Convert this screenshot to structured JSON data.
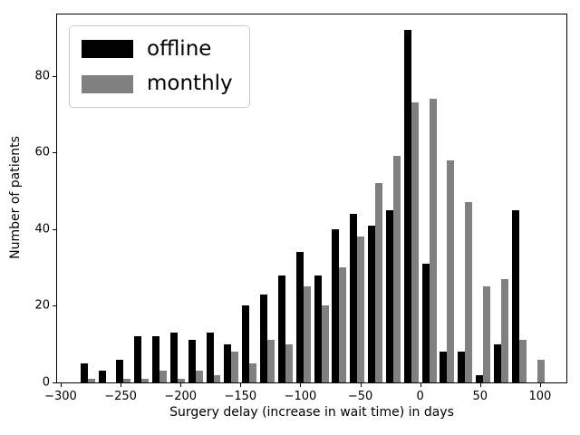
{
  "figure": {
    "background": "#ffffff"
  },
  "axes": {
    "xlabel": "Surgery delay (increase in wait time) in days",
    "ylabel": "Number of patients",
    "x_ticks": [
      {
        "value": -300,
        "label": "−300"
      },
      {
        "value": -250,
        "label": "−250"
      },
      {
        "value": -200,
        "label": "−200"
      },
      {
        "value": -150,
        "label": "−150"
      },
      {
        "value": -100,
        "label": "−100"
      },
      {
        "value": -50,
        "label": "−50"
      },
      {
        "value": 0,
        "label": "0"
      },
      {
        "value": 50,
        "label": "50"
      },
      {
        "value": 100,
        "label": "100"
      }
    ],
    "y_ticks": [
      {
        "value": 0,
        "label": "0"
      },
      {
        "value": 20,
        "label": "20"
      },
      {
        "value": 40,
        "label": "40"
      },
      {
        "value": 60,
        "label": "60"
      },
      {
        "value": 80,
        "label": "80"
      }
    ]
  },
  "legend": {
    "items": [
      {
        "label": "offline",
        "color": "#000000"
      },
      {
        "label": "monthly",
        "color": "#808080"
      }
    ]
  },
  "chart_data": {
    "type": "bar",
    "title": "",
    "xlabel": "Surgery delay (increase in wait time) in days",
    "ylabel": "Number of patients",
    "grid": false,
    "legend_position": "upper left",
    "bin_width_days": 15,
    "bar_width_days": 6,
    "xlim": [
      -303,
      122
    ],
    "ylim": [
      0,
      96
    ],
    "categories": [
      -277.5,
      -262.5,
      -247.5,
      -232.5,
      -217.5,
      -202.5,
      -187.5,
      -172.5,
      -157.5,
      -142.5,
      -127.5,
      -112.5,
      -97.5,
      -82.5,
      -67.5,
      -52.5,
      -37.5,
      -22.5,
      -7.5,
      7.5,
      22.5,
      37.5,
      52.5,
      67.5,
      82.5,
      97.5
    ],
    "series": [
      {
        "name": "offline",
        "color": "#000000",
        "values": [
          5,
          3,
          6,
          12,
          12,
          13,
          11,
          13,
          10,
          20,
          23,
          28,
          34,
          28,
          40,
          44,
          41,
          45,
          92,
          31,
          8,
          8,
          2,
          10,
          45,
          0
        ]
      },
      {
        "name": "monthly",
        "color": "#808080",
        "values": [
          1,
          0,
          1,
          1,
          3,
          1,
          3,
          2,
          8,
          5,
          11,
          10,
          25,
          20,
          30,
          38,
          52,
          59,
          73,
          74,
          58,
          47,
          25,
          27,
          11,
          6
        ]
      }
    ]
  }
}
